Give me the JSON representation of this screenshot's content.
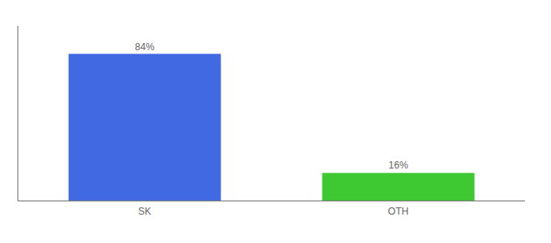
{
  "chart_data": {
    "type": "bar",
    "categories": [
      "SK",
      "OTH"
    ],
    "values": [
      84,
      16
    ],
    "value_labels": [
      "84%",
      "16%"
    ],
    "colors": [
      "#4169e1",
      "#3ec832"
    ],
    "ylim": [
      0,
      100
    ],
    "data_labels": true,
    "tick_labels": "x",
    "grid": false
  }
}
